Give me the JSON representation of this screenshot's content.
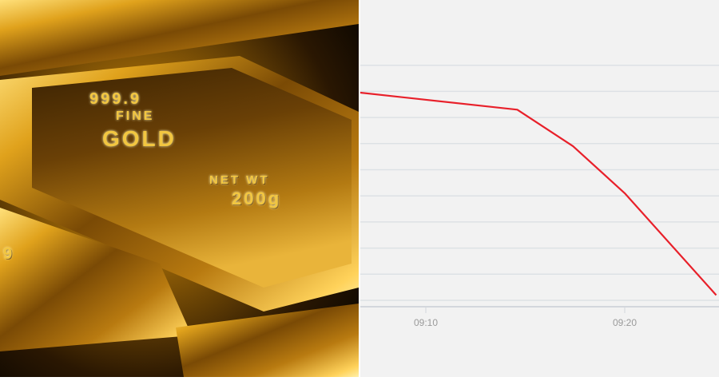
{
  "photo": {
    "stamp_purity": "999.9",
    "stamp_fine": "FINE",
    "stamp_gold": "GOLD",
    "stamp_netwt": "NET WT",
    "stamp_weight": "200g",
    "stamp_side": "9"
  },
  "chart_data": {
    "type": "line",
    "title": "",
    "xlabel": "",
    "ylabel": "",
    "x_ticks": [
      "09:10",
      "09:20"
    ],
    "xlim": [
      "09:06.7",
      "09:25"
    ],
    "ylim": [
      0,
      9
    ],
    "y_tick_labels_shown": false,
    "grid": "horizontal",
    "line_color": "#e8202a",
    "series": [
      {
        "x": [
          "09:06.7",
          "09:14.6",
          "09:17.4",
          "09:20",
          "09:24.6"
        ],
        "y": [
          7.95,
          7.3,
          5.9,
          4.1,
          0.2
        ]
      }
    ]
  }
}
